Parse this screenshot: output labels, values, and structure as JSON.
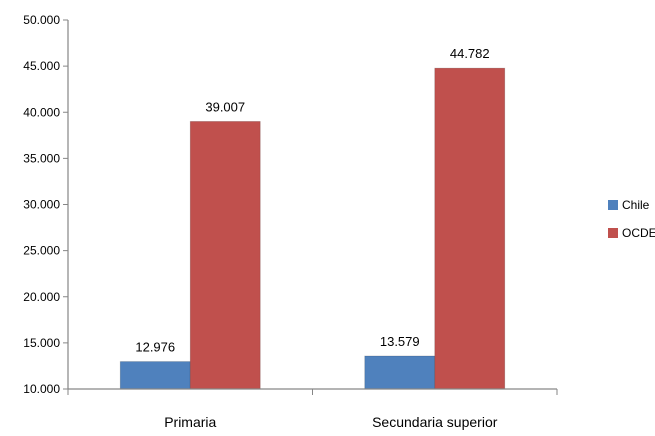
{
  "chart_data": {
    "type": "bar",
    "categories": [
      "Primaria",
      "Secundaria superior"
    ],
    "series": [
      {
        "name": "Chile",
        "values": [
          12976,
          13579
        ],
        "labels": [
          "12.976",
          "13.579"
        ],
        "color": "#4F81BD"
      },
      {
        "name": "OCDE",
        "values": [
          39007,
          44782
        ],
        "labels": [
          "39.007",
          "44.782"
        ],
        "color": "#C0504D"
      }
    ],
    "yticks": [
      10000,
      15000,
      20000,
      25000,
      30000,
      35000,
      40000,
      45000,
      50000
    ],
    "ytick_labels": [
      "10.000",
      "15.000",
      "20.000",
      "25.000",
      "30.000",
      "35.000",
      "40.000",
      "45.000",
      "50.000"
    ],
    "ylim": [
      10000,
      50000
    ],
    "legend_position": "right",
    "grid": false
  }
}
